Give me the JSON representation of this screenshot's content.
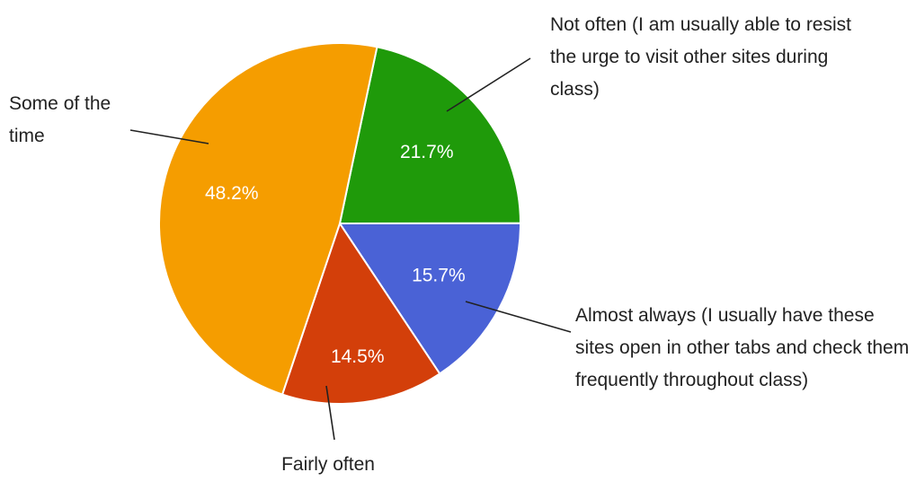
{
  "chart_data": {
    "type": "pie",
    "categories": [
      "Not often (I am usually able to resist the urge to visit other sites during class)",
      "Almost always (I usually have these sites open in other tabs and check them frequently throughout class)",
      "Fairly often",
      "Some of the time"
    ],
    "values": [
      21.7,
      15.7,
      14.5,
      48.2
    ],
    "value_labels": [
      "21.7%",
      "15.7%",
      "14.5%",
      "48.2%"
    ],
    "colors": [
      "#1f9a0a",
      "#4a62d6",
      "#d33f0a",
      "#f59d00"
    ]
  }
}
